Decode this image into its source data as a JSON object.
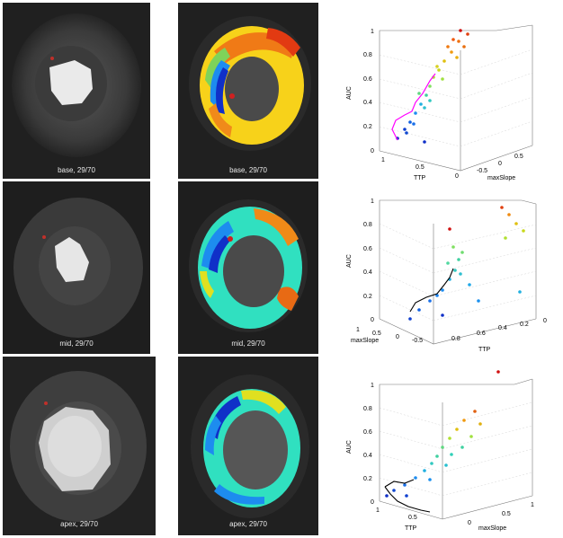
{
  "rows": [
    {
      "caption_gray": "base, 29/70",
      "caption_map": "base, 29/70",
      "plot": {
        "zlabel": "AUC",
        "xlabel": "TTP",
        "ylabel": "maxSlope",
        "z_ticks": [
          "0",
          "0.2",
          "0.4",
          "0.6",
          "0.8",
          "1"
        ],
        "x_ticks": [
          "1",
          "0.5",
          "0"
        ],
        "y_ticks": [
          "-0.5",
          "0",
          "0.5"
        ],
        "curve_color": "#ff00ff"
      }
    },
    {
      "caption_gray": "mid, 29/70",
      "caption_map": "mid, 29/70",
      "plot": {
        "zlabel": "AUC",
        "xlabel": "TTP",
        "ylabel": "maxSlope",
        "z_ticks": [
          "0",
          "0.2",
          "0.4",
          "0.6",
          "0.8",
          "1"
        ],
        "x_ticks": [
          "0.8",
          "0.6",
          "0.4",
          "0.2",
          "0"
        ],
        "y_ticks": [
          "1",
          "0.5",
          "0",
          "-0.5"
        ],
        "curve_color": "#000000"
      }
    },
    {
      "caption_gray": "apex, 29/70",
      "caption_map": "apex, 29/70",
      "plot": {
        "zlabel": "AUC",
        "xlabel": "TTP",
        "ylabel": "maxSlope",
        "z_ticks": [
          "0",
          "0.2",
          "0.4",
          "0.6",
          "0.8",
          "1"
        ],
        "x_ticks": [
          "1",
          "0.5"
        ],
        "y_ticks": [
          "0",
          "0.5",
          "1"
        ],
        "curve_color": "#000000"
      }
    }
  ],
  "colors": {
    "background": "#ffffff",
    "mri_bg": "#1a1a1a",
    "caption": "#e8e8e8"
  }
}
